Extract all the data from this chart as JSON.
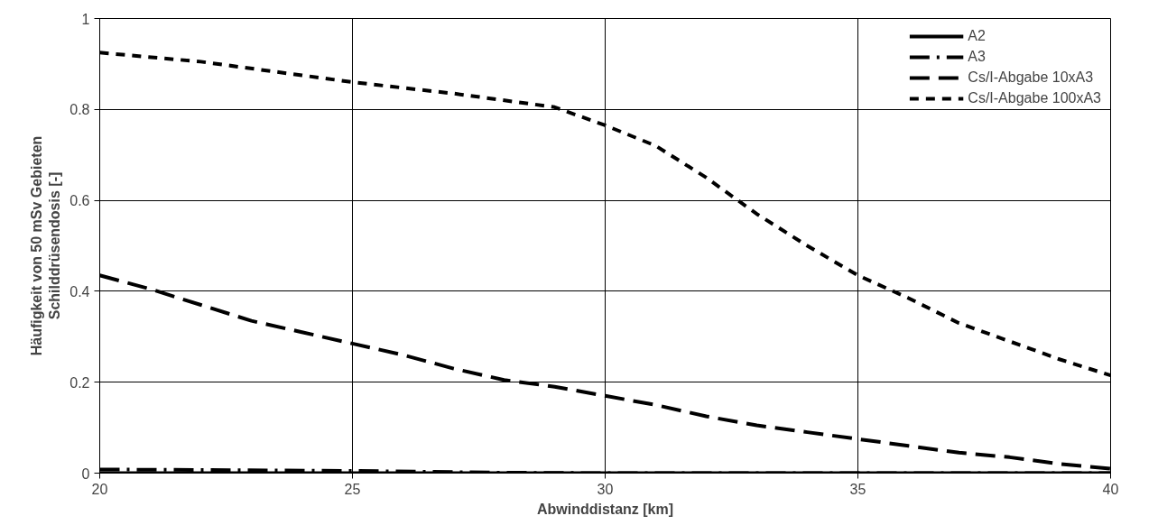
{
  "chart_data": {
    "type": "line",
    "xlabel": "Abwinddistanz [km]",
    "ylabel": "Häufigkeit von 50 mSv Gebieten\nSchilddrüsendosis [-]",
    "xlim": [
      20,
      40
    ],
    "xticks": [
      20,
      25,
      30,
      35,
      40
    ],
    "ylim": [
      0,
      1
    ],
    "yticks": [
      0,
      0.2,
      0.4,
      0.6,
      0.8,
      1
    ],
    "grid": true,
    "legend": "top right",
    "marker": "none",
    "series": [
      {
        "name": "A2",
        "color": "#000000",
        "line_style": "solid",
        "x": [
          20,
          25,
          30,
          35,
          40
        ],
        "values": [
          0,
          0,
          0,
          0,
          0
        ]
      },
      {
        "name": "A3",
        "color": "#000000",
        "line_style": "dashdot",
        "x": [
          20,
          22,
          25,
          28,
          30,
          35,
          40
        ],
        "values": [
          0.008,
          0.007,
          0.005,
          0.001,
          0,
          0,
          0
        ]
      },
      {
        "name": "Cs/I-Abgabe 10xA3",
        "color": "#000000",
        "line_style": "longdash",
        "x": [
          20,
          21,
          22,
          23,
          24,
          25,
          26,
          27,
          28,
          29,
          30,
          31,
          32,
          33,
          34,
          35,
          36,
          37,
          38,
          39,
          40
        ],
        "values": [
          0.435,
          0.405,
          0.37,
          0.335,
          0.31,
          0.285,
          0.26,
          0.23,
          0.205,
          0.19,
          0.17,
          0.15,
          0.125,
          0.105,
          0.09,
          0.075,
          0.06,
          0.045,
          0.035,
          0.02,
          0.01
        ]
      },
      {
        "name": "Cs/I-Abgabe 100xA3",
        "color": "#000000",
        "line_style": "dashed",
        "x": [
          20,
          22,
          24,
          25,
          27,
          29,
          30,
          31,
          32,
          33,
          34,
          35,
          36,
          37,
          38,
          39,
          40
        ],
        "values": [
          0.925,
          0.905,
          0.875,
          0.86,
          0.835,
          0.805,
          0.765,
          0.72,
          0.65,
          0.57,
          0.5,
          0.435,
          0.385,
          0.33,
          0.29,
          0.25,
          0.215
        ]
      }
    ]
  }
}
